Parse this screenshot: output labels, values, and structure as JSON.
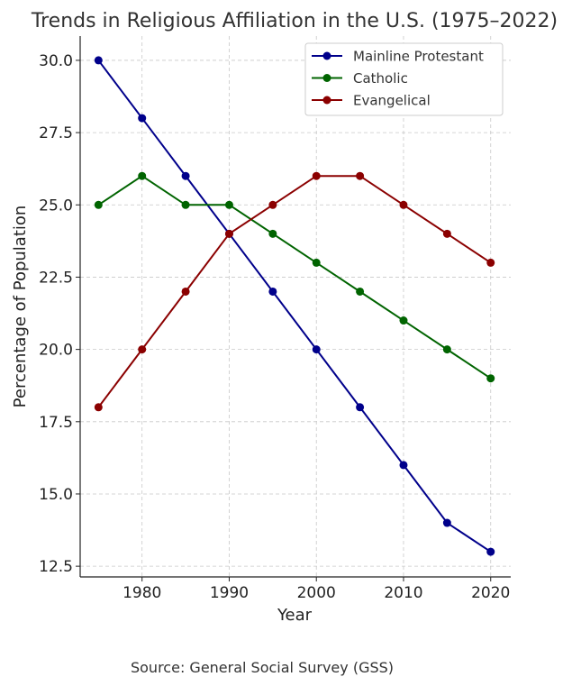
{
  "chart_data": {
    "type": "line",
    "title": "Trends in Religious Affiliation in the U.S. (1975–2022)",
    "xlabel": "Year",
    "ylabel": "Percentage of Population",
    "source": "Source: General Social Survey (GSS)",
    "x": [
      1975,
      1980,
      1985,
      1990,
      1995,
      2000,
      2005,
      2010,
      2015,
      2020
    ],
    "xlim": [
      1972.9,
      2022.3
    ],
    "ylim": [
      12.13,
      30.84
    ],
    "xticks": [
      1980,
      1990,
      2000,
      2010,
      2020
    ],
    "yticks": [
      "12.5",
      "15.0",
      "17.5",
      "20.0",
      "22.5",
      "25.0",
      "27.5",
      "30.0"
    ],
    "grid": true,
    "legend_position": "top-right",
    "series": [
      {
        "name": "Mainline Protestant",
        "color": "#00008b",
        "values": [
          30,
          28,
          26,
          24,
          22,
          20,
          18,
          16,
          14,
          13
        ]
      },
      {
        "name": "Catholic",
        "color": "#006400",
        "values": [
          25,
          26,
          25,
          25,
          24,
          23,
          22,
          21,
          20,
          19
        ]
      },
      {
        "name": "Evangelical",
        "color": "#8b0000",
        "values": [
          18,
          20,
          22,
          24,
          25,
          26,
          26,
          25,
          24,
          23
        ]
      }
    ]
  }
}
